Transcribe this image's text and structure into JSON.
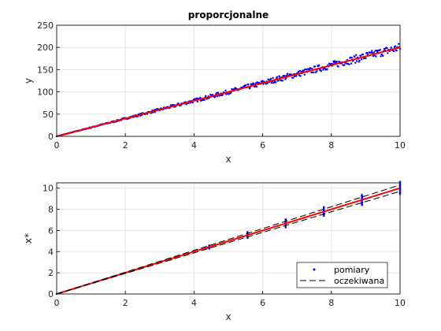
{
  "chart_data": [
    {
      "type": "scatter",
      "title": "proporcjonalne",
      "xlabel": "x",
      "ylabel": "y",
      "xlim": [
        0,
        10
      ],
      "ylim": [
        0,
        250
      ],
      "xticks": [
        0,
        2,
        4,
        6,
        8,
        10
      ],
      "yticks": [
        0,
        50,
        100,
        150,
        200,
        250
      ],
      "grid": true,
      "series": [
        {
          "kind": "scatter",
          "color": "#0000ff",
          "x": [
            0,
            10
          ],
          "y": [
            0,
            200
          ],
          "spread": [
            0,
            10
          ]
        },
        {
          "kind": "line",
          "color": "#ff0000",
          "x": [
            0,
            10
          ],
          "y": [
            0,
            200
          ]
        }
      ]
    },
    {
      "type": "scatter",
      "xlabel": "x",
      "ylabel": "x*",
      "xlim": [
        0,
        10
      ],
      "ylim": [
        0,
        10.5
      ],
      "xticks": [
        0,
        2,
        4,
        6,
        8,
        10
      ],
      "yticks": [
        0,
        2,
        4,
        6,
        8,
        10
      ],
      "grid": true,
      "legend_position": "bottom-right",
      "series": [
        {
          "kind": "scatter",
          "name": "pomiary",
          "color": "#0000ff",
          "x": [
            0,
            1.11,
            2.22,
            3.33,
            4.44,
            5.56,
            6.67,
            7.78,
            8.89,
            10
          ],
          "y": [
            0,
            1.11,
            2.22,
            3.33,
            4.44,
            5.56,
            6.67,
            7.78,
            8.89,
            10
          ],
          "spread": [
            0,
            0.02,
            0.05,
            0.1,
            0.2,
            0.3,
            0.4,
            0.45,
            0.5,
            0.6
          ]
        },
        {
          "kind": "line",
          "color": "#ff0000",
          "x": [
            0,
            10
          ],
          "y": [
            0,
            10
          ]
        },
        {
          "kind": "dashed",
          "name": "oczekiwana",
          "color": "#000000",
          "x": [
            0,
            10
          ],
          "y": [
            0,
            10.3
          ]
        },
        {
          "kind": "dashed",
          "color": "#000000",
          "x": [
            0,
            10
          ],
          "y": [
            0,
            9.7
          ]
        }
      ]
    }
  ]
}
